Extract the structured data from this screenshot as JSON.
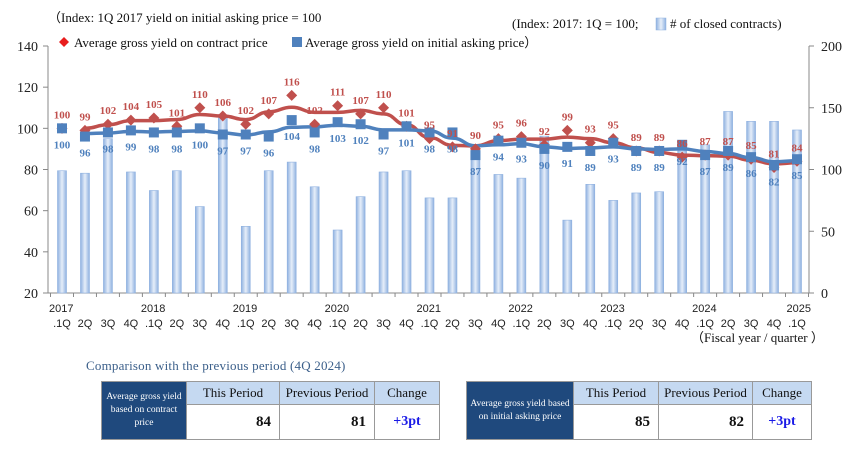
{
  "chart_data": {
    "type": "bar+line",
    "title": "",
    "notes": {
      "left": "（Index: 1Q 2017 yield on initial asking price = 100",
      "right": "(Index: 2017: 1Q = 100;",
      "right_bar_legend": "# of closed contracts)",
      "xlabel": "（Fiscal year / quarter ）"
    },
    "legend": {
      "red": "Average gross yield on contract price",
      "blue": "Average gross yield on initial asking price）"
    },
    "legend_placement": "top-left",
    "x": [
      "2017.1Q",
      "2Q",
      "3Q",
      "4Q",
      "2018.1Q",
      "2Q",
      "3Q",
      "4Q",
      "2019.1Q",
      "2Q",
      "3Q",
      "4Q",
      "2020.1Q",
      "2Q",
      "3Q",
      "4Q",
      "2021.1Q",
      "2Q",
      "3Q",
      "4Q",
      "2022.1Q",
      "2Q",
      "3Q",
      "4Q",
      "2023.1Q",
      "2Q",
      "3Q",
      "4Q",
      "2024.1Q",
      "2Q",
      "3Q",
      "4Q",
      "2025.1Q"
    ],
    "x_tick_years": [
      "2017",
      "2018",
      "2019",
      "2020",
      "2021",
      "2022",
      "2023",
      "2024",
      "2025"
    ],
    "x_tick_quarters": [
      ".1Q",
      "2Q",
      "3Q",
      "4Q",
      ".1Q",
      "2Q",
      "3Q",
      "4Q",
      ".1Q",
      "2Q",
      "3Q",
      "4Q",
      ".1Q",
      "2Q",
      "3Q",
      "4Q",
      ".1Q",
      "2Q",
      "3Q",
      "4Q",
      ".1Q",
      "2Q",
      "3Q",
      "4Q",
      ".1Q",
      "2Q",
      "3Q",
      "4Q",
      ".1Q",
      "2Q",
      "3Q",
      "4Q",
      ".1Q"
    ],
    "left_axis": {
      "ylim": [
        20,
        140
      ],
      "ticks": [
        20,
        40,
        60,
        80,
        100,
        120,
        140
      ]
    },
    "right_axis": {
      "ylim": [
        0,
        200
      ],
      "ticks": [
        0,
        50,
        100,
        150,
        200
      ]
    },
    "grid": false,
    "series": [
      {
        "name": "Average gross yield on contract price",
        "kind": "line+marker",
        "marker": "diamond",
        "color": "#c0504d",
        "axis": "left",
        "values": [
          100,
          99,
          102,
          104,
          105,
          101,
          110,
          106,
          102,
          107,
          116,
          102,
          111,
          107,
          110,
          101,
          95,
          91,
          90,
          95,
          96,
          92,
          99,
          93,
          95,
          89,
          89,
          86,
          87,
          87,
          85,
          81,
          84
        ]
      },
      {
        "name": "Average gross yield on initial asking price",
        "kind": "line+marker",
        "marker": "square",
        "color": "#4f81bd",
        "axis": "left",
        "values": [
          100,
          96,
          98,
          99,
          98,
          98,
          100,
          97,
          97,
          96,
          104,
          98,
          103,
          102,
          97,
          101,
          98,
          98,
          87,
          94,
          93,
          90,
          91,
          89,
          93,
          89,
          89,
          92,
          87,
          89,
          86,
          82,
          85
        ]
      },
      {
        "name": "# of closed contracts",
        "kind": "bar",
        "color": "#a9c4e8",
        "axis": "right",
        "values": [
          99,
          97,
          125,
          98,
          83,
          99,
          70,
          143,
          54,
          99,
          106,
          86,
          51,
          78,
          98,
          99,
          77,
          77,
          115,
          96,
          93,
          127,
          59,
          88,
          75,
          81,
          82,
          115,
          120,
          147,
          139,
          139,
          132
        ]
      }
    ]
  },
  "comparison": {
    "title": "Comparison with the previous period (4Q 2024)",
    "columns": [
      "This Period",
      "Previous Period",
      "Change"
    ],
    "tables": [
      {
        "label": "Average gross yield based on contract price",
        "this_period": "84",
        "previous_period": "81",
        "change": "+3pt"
      },
      {
        "label": "Average gross yield based on initial asking price",
        "this_period": "85",
        "previous_period": "82",
        "change": "+3pt"
      }
    ]
  }
}
